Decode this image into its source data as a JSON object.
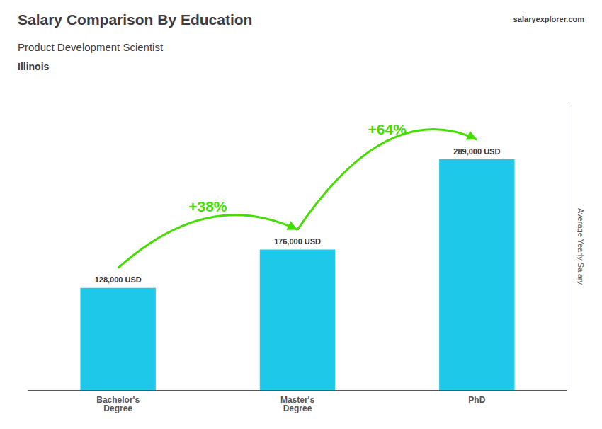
{
  "chart_data": {
    "type": "bar",
    "title": "Salary Comparison By Education",
    "subtitle": [
      "Product Development Scientist",
      "Illinois"
    ],
    "ylabel": "Average Yearly Salary",
    "categories": [
      "Bachelor's\nDegree",
      "Master's\nDegree",
      "PhD"
    ],
    "values": [
      128000,
      176000,
      289000
    ],
    "value_labels": [
      "128,000 USD",
      "176,000 USD",
      "289,000 USD"
    ],
    "data_labels": true,
    "color": "#1EC8E8",
    "ylim": [
      0,
      360000
    ],
    "grid": false,
    "tick_labels": "x",
    "annotations": [
      {
        "text": "+38%",
        "from": "Bachelor's\nDegree",
        "to": "Master's\nDegree",
        "color": "#44DD00"
      },
      {
        "text": "+64%",
        "from": "Master's\nDegree",
        "to": "PhD",
        "color": "#44DD00"
      },
      {
        "text": "salaryexplorer.com"
      }
    ]
  }
}
